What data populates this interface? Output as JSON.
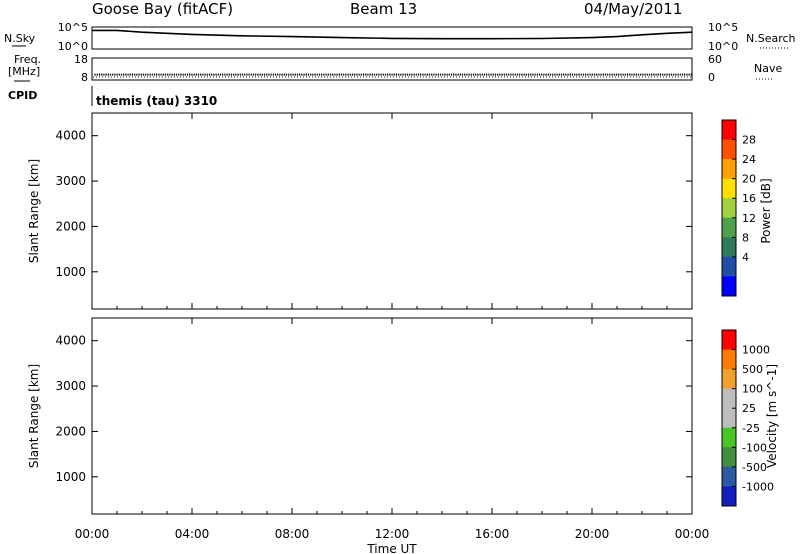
{
  "header": {
    "station": "Goose Bay (fitACF)",
    "beam": "Beam 13",
    "date": "04/May/2011"
  },
  "top_panels": {
    "nsky_label": "N.Sky",
    "nsearch_label": "N.Search",
    "nsky_ticks": [
      "10^5",
      "10^0"
    ],
    "nsearch_ticks": [
      "10^5",
      "10^0"
    ],
    "freq_label_1": "Freq.",
    "freq_label_2": "[MHz]",
    "freq_ticks": [
      "18",
      "8"
    ],
    "nave_label": "Nave",
    "nave_ticks": [
      "60",
      "0"
    ],
    "cpid_label": "CPID",
    "cpid_value": "themis (tau) 3310"
  },
  "chart_data": [
    {
      "type": "line",
      "panel": "noise",
      "ylabel_left": "N.Sky",
      "ylabel_right": "N.Search",
      "ylim": [
        0,
        5
      ],
      "x": [
        0,
        1,
        2,
        4,
        6,
        8,
        10,
        12,
        14,
        16,
        18,
        20,
        21,
        22,
        23,
        24
      ],
      "series": [
        {
          "name": "N.Sky",
          "values": [
            4.6,
            4.6,
            4.1,
            3.5,
            3.1,
            2.9,
            2.6,
            2.4,
            2.3,
            2.3,
            2.35,
            2.6,
            2.9,
            3.4,
            3.8,
            4.1
          ]
        }
      ]
    },
    {
      "type": "line",
      "panel": "frequency",
      "ylabel_left": "Freq. [MHz]",
      "ylabel_right": "Nave",
      "ylim": [
        8,
        18
      ],
      "x": [
        0.1,
        24
      ],
      "series": [
        {
          "name": "Freq.",
          "values": [
            10.2,
            10.2
          ]
        }
      ]
    },
    {
      "type": "heatmap",
      "panel": "power",
      "ylabel": "Slant Range [km]",
      "xlabel": "",
      "xlim": [
        0,
        24
      ],
      "ylim": [
        180,
        4500
      ],
      "yticks": [
        1000,
        2000,
        3000,
        4000
      ],
      "colorbar_label": "Power [dB]",
      "colorbar_ticks": [
        4,
        8,
        12,
        16,
        20,
        24,
        28
      ],
      "colorbar_range": [
        0,
        32
      ]
    },
    {
      "type": "heatmap",
      "panel": "velocity",
      "ylabel": "Slant Range [km]",
      "xlabel": "Time UT",
      "xlim": [
        0,
        24
      ],
      "ylim": [
        180,
        4500
      ],
      "yticks": [
        1000,
        2000,
        3000,
        4000
      ],
      "xticks": [
        "00:00",
        "04:00",
        "08:00",
        "12:00",
        "16:00",
        "20:00",
        "00:00"
      ],
      "colorbar_label": "Velocity [m s^-1]",
      "colorbar_ticks": [
        "1000",
        "500",
        "100",
        "25",
        "-25",
        "-100",
        "-500",
        "-1000"
      ]
    }
  ],
  "colors": {
    "power_scale": [
      "#0000ff",
      "#1f4fa8",
      "#2f7a5a",
      "#4fa04a",
      "#9fd040",
      "#ffe000",
      "#ffa000",
      "#ff5000",
      "#ff0000"
    ],
    "velocity_scale": [
      "#1020c0",
      "#2a5aa0",
      "#3f8f3f",
      "#48c428",
      "#bdbdbd",
      "#bdbdbd",
      "#f0a030",
      "#ff7a00",
      "#ff0000"
    ]
  }
}
